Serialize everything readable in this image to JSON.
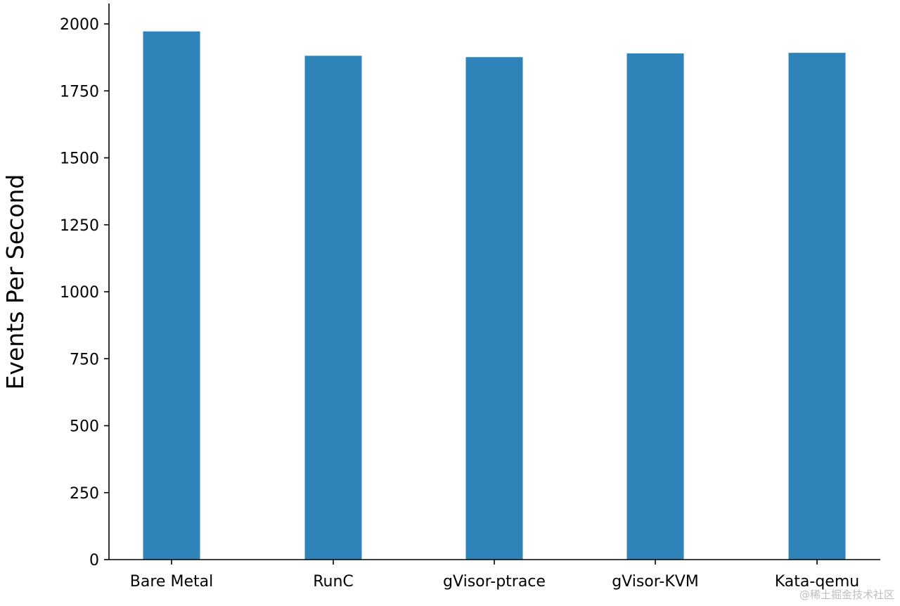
{
  "chart_data": {
    "type": "bar",
    "categories": [
      "Bare Metal",
      "RunC",
      "gVisor-ptrace",
      "gVisor-KVM",
      "Kata-qemu"
    ],
    "values": [
      1972,
      1881,
      1876,
      1890,
      1892
    ],
    "title": "",
    "xlabel": "",
    "ylabel": "Events Per Second",
    "ylim": [
      0,
      2070
    ],
    "yticks": [
      0,
      250,
      500,
      750,
      1000,
      1250,
      1500,
      1750,
      2000
    ],
    "bar_color": "#2e83b9",
    "grid": false,
    "legend": "none"
  },
  "watermark": "@稀土掘金技术社区"
}
